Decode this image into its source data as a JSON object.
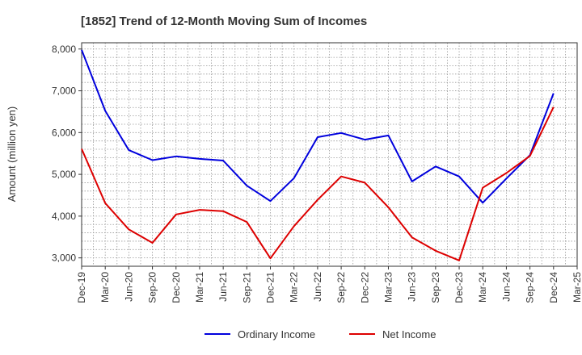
{
  "chart_data": {
    "type": "line",
    "title": "[1852]  Trend of 12-Month Moving Sum of Incomes",
    "xlabel": "",
    "ylabel": "Amount (million yen)",
    "ylim": [
      2800,
      8150
    ],
    "yticks": [
      3000,
      4000,
      5000,
      6000,
      7000,
      8000
    ],
    "ytick_labels": [
      "3,000",
      "4,000",
      "5,000",
      "6,000",
      "7,000",
      "8,000"
    ],
    "categories": [
      "Dec-19",
      "Mar-20",
      "Jun-20",
      "Sep-20",
      "Dec-20",
      "Mar-21",
      "Jun-21",
      "Sep-21",
      "Dec-21",
      "Mar-22",
      "Jun-22",
      "Sep-22",
      "Dec-22",
      "Mar-23",
      "Jun-23",
      "Sep-23",
      "Dec-23",
      "Mar-24",
      "Jun-24",
      "Sep-24",
      "Dec-24",
      "Mar-25"
    ],
    "grid": true,
    "legend_position": "bottom",
    "series": [
      {
        "name": "Ordinary Income",
        "color": "#0000dd",
        "values": [
          7980,
          6520,
          5580,
          5340,
          5430,
          5370,
          5330,
          4730,
          4360,
          4910,
          5890,
          5990,
          5830,
          5930,
          4830,
          5190,
          4950,
          4320,
          4900,
          5460,
          6940,
          null
        ]
      },
      {
        "name": "Net Income",
        "color": "#dd0000",
        "values": [
          5610,
          4310,
          3680,
          3360,
          4040,
          4150,
          4120,
          3860,
          2990,
          3760,
          4390,
          4950,
          4800,
          4210,
          3490,
          3170,
          2940,
          4680,
          5030,
          5440,
          6610,
          null
        ]
      }
    ]
  }
}
